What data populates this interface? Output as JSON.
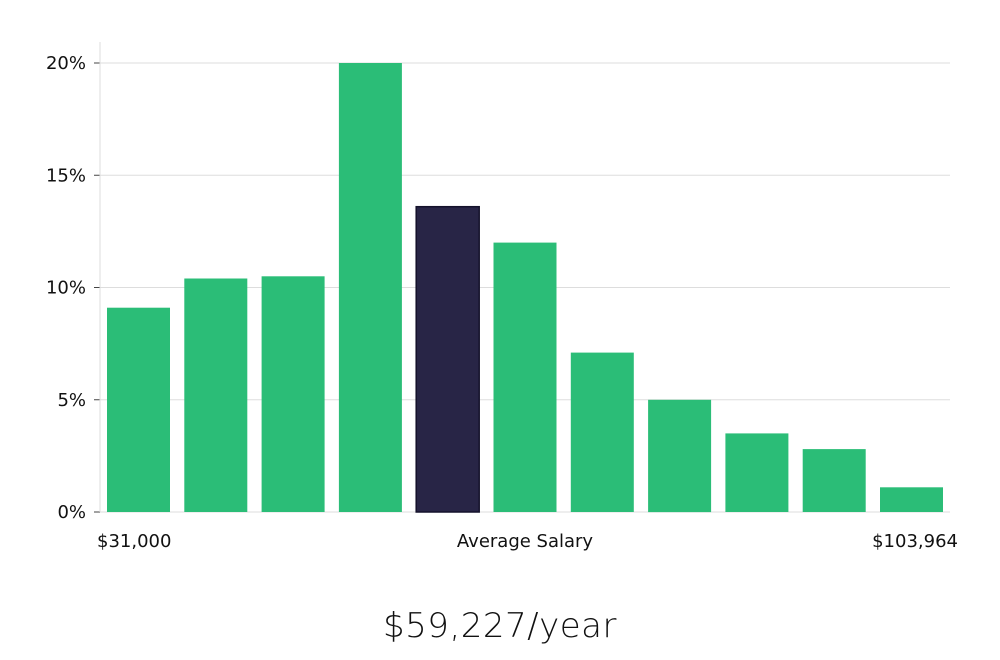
{
  "chart_data": {
    "type": "bar",
    "title": "",
    "values": [
      9.1,
      10.4,
      10.5,
      20.0,
      13.6,
      12.0,
      7.1,
      5.0,
      3.5,
      2.8,
      1.1
    ],
    "highlight_index": 4,
    "ylim": [
      0,
      21
    ],
    "y_ticks": [
      0,
      5,
      10,
      15,
      20
    ],
    "y_tick_labels": [
      "0%",
      "5%",
      "10%",
      "15%",
      "20%"
    ],
    "x_labels": {
      "min": "$31,000",
      "center": "Average Salary",
      "max": "$103,964"
    },
    "grid": true,
    "colors": {
      "bar": "#2bbd77",
      "highlight": "#282546",
      "grid": "#dddddd",
      "axis": "#dddddd"
    }
  },
  "summary": {
    "salary_text": "$59,227/year"
  }
}
